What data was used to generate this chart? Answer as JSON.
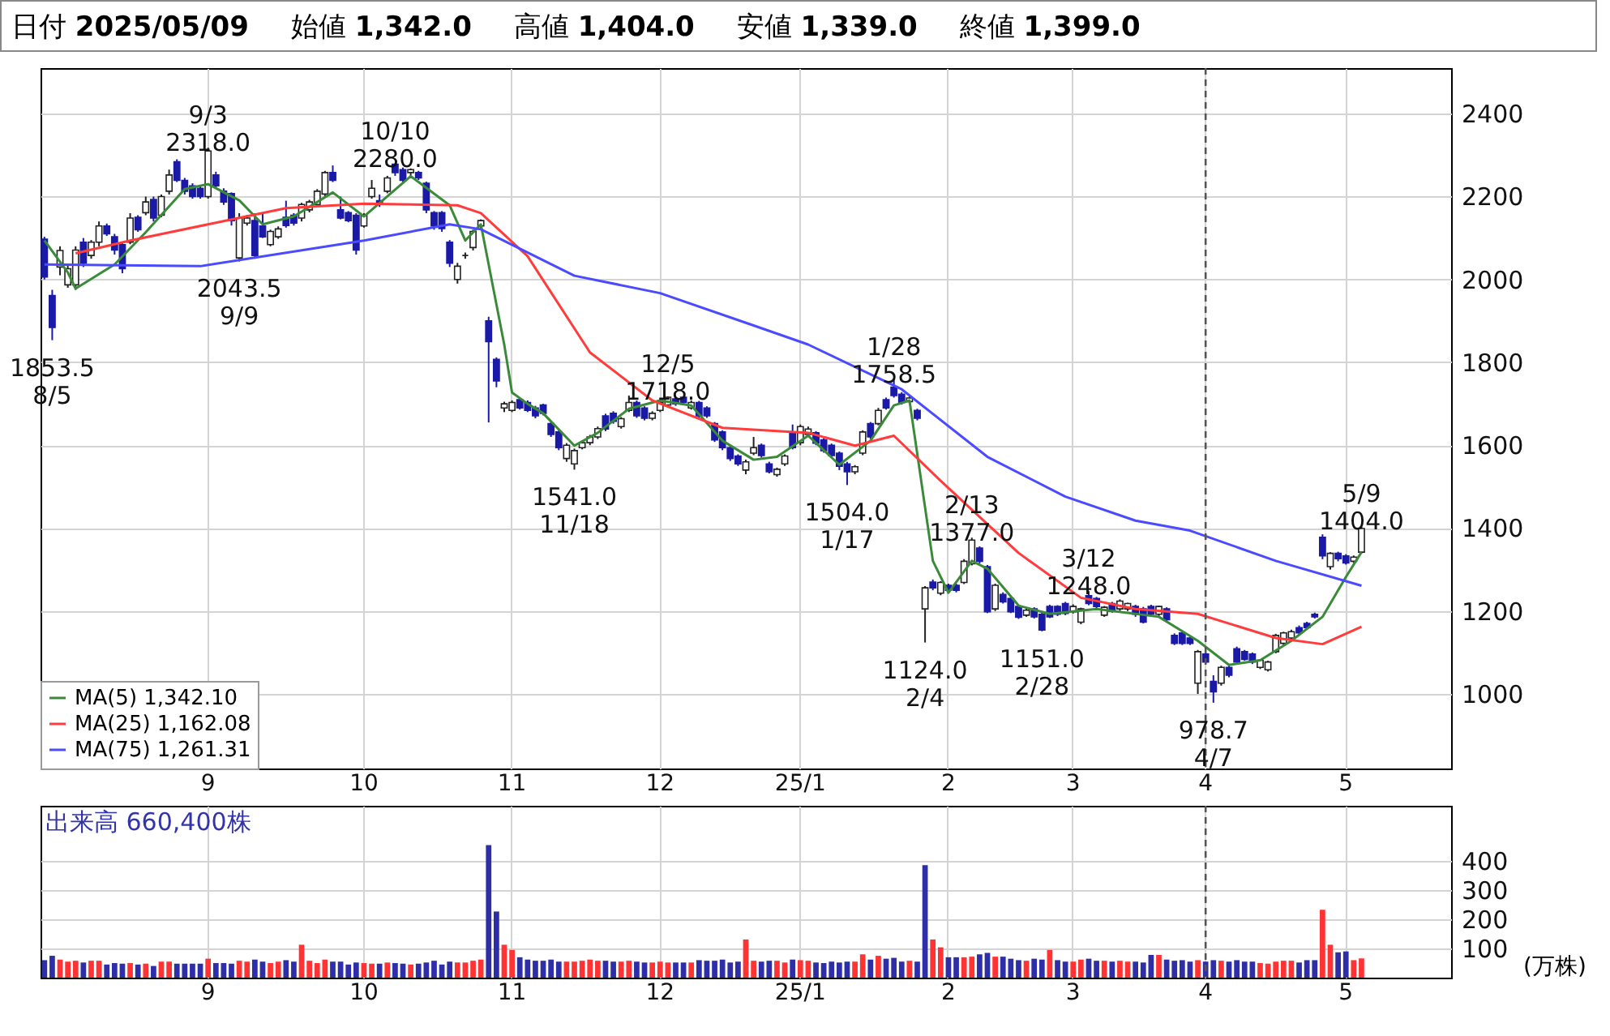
{
  "chart_data": [
    {
      "type": "candlestick",
      "annotations": [
        "日付 2025/05/09",
        "始値 1,342.0",
        "高値 1,404.0",
        "安値 1,339.0",
        "終値 1,399.0",
        {
          "text": "1853.5\n8/5",
          "y": 1853.5
        },
        {
          "text": "9/3\n2318.0",
          "y": 2318.0
        },
        {
          "text": "2043.5\n9/9",
          "y": 2043.5
        },
        {
          "text": "10/10\n2280.0",
          "y": 2280.0
        },
        {
          "text": "1541.0\n11/18",
          "y": 1541.0
        },
        {
          "text": "12/5\n1718.0",
          "y": 1718.0
        },
        {
          "text": "1504.0\n1/17",
          "y": 1504.0
        },
        {
          "text": "1/28\n1758.5",
          "y": 1758.5
        },
        {
          "text": "1124.0\n2/4",
          "y": 1124.0
        },
        {
          "text": "2/13\n1377.0",
          "y": 1377.0
        },
        {
          "text": "1151.0\n2/28",
          "y": 1151.0
        },
        {
          "text": "3/12\n1248.0",
          "y": 1248.0
        },
        {
          "text": "978.7\n4/7",
          "y": 978.7
        },
        {
          "text": "5/9\n1404.0",
          "y": 1404.0
        }
      ],
      "categories": [
        null,
        null,
        null,
        null,
        null,
        null,
        null,
        null,
        null,
        null,
        null,
        null,
        null,
        null,
        null,
        null,
        null,
        null,
        null,
        null,
        null,
        "9",
        null,
        null,
        null,
        null,
        null,
        null,
        null,
        null,
        null,
        null,
        null,
        null,
        null,
        null,
        null,
        null,
        null,
        null,
        null,
        "10",
        null,
        null,
        null,
        null,
        null,
        null,
        null,
        null,
        null,
        null,
        null,
        null,
        null,
        null,
        null,
        null,
        null,
        null,
        "11",
        null,
        null,
        null,
        null,
        null,
        null,
        null,
        null,
        null,
        null,
        null,
        null,
        null,
        null,
        null,
        null,
        null,
        null,
        "12",
        null,
        null,
        null,
        null,
        null,
        null,
        null,
        null,
        null,
        null,
        null,
        null,
        null,
        null,
        null,
        null,
        null,
        "25/1",
        null,
        null,
        null,
        null,
        null,
        null,
        null,
        null,
        null,
        null,
        null,
        null,
        null,
        null,
        null,
        null,
        null,
        null,
        "2",
        null,
        null,
        null,
        null,
        null,
        null,
        null,
        null,
        null,
        null,
        null,
        null,
        null,
        null,
        null,
        "3",
        null,
        null,
        null,
        null,
        null,
        null,
        null,
        null,
        null,
        null,
        null,
        null,
        null,
        null,
        null,
        null,
        "4",
        null,
        null,
        null,
        null,
        null,
        null,
        null,
        null,
        null,
        null,
        null,
        null,
        null,
        null,
        null,
        null,
        null,
        "5",
        null,
        null,
        null,
        null,
        null,
        null,
        null,
        null,
        null,
        null,
        null,
        null,
        null
      ],
      "ohlc": [
        [
          2097,
          2103,
          2000,
          2006
        ],
        [
          1961,
          1975,
          1853.5,
          1884
        ],
        [
          2030,
          2080,
          2010,
          2070
        ],
        [
          1987,
          2035,
          1980,
          2026
        ],
        [
          1987,
          2080,
          1975,
          2071
        ],
        [
          2090,
          2100,
          2030,
          2039
        ],
        [
          2058,
          2095,
          2050,
          2090
        ],
        [
          2090,
          2140,
          2080,
          2129
        ],
        [
          2129,
          2135,
          2105,
          2110
        ],
        [
          2103,
          2110,
          2060,
          2071
        ],
        [
          2084,
          2090,
          2015,
          2026
        ],
        [
          2090,
          2160,
          2085,
          2148
        ],
        [
          2150,
          2155,
          2115,
          2120
        ],
        [
          2161,
          2200,
          2155,
          2187
        ],
        [
          2193,
          2200,
          2140,
          2148
        ],
        [
          2155,
          2205,
          2150,
          2200
        ],
        [
          2213,
          2265,
          2205,
          2252
        ],
        [
          2284,
          2290,
          2235,
          2239
        ],
        [
          2239,
          2245,
          2205,
          2213
        ],
        [
          2226,
          2232,
          2195,
          2200
        ],
        [
          2220,
          2225,
          2195,
          2200
        ],
        [
          2200,
          2318,
          2195,
          2310
        ],
        [
          2252,
          2260,
          2220,
          2226
        ],
        [
          2213,
          2220,
          2180,
          2187
        ],
        [
          2207,
          2210,
          2130,
          2142
        ],
        [
          2052,
          2160,
          2043.5,
          2148
        ],
        [
          2136,
          2155,
          2130,
          2148
        ],
        [
          2142,
          2160,
          2050,
          2058
        ],
        [
          2129,
          2160,
          2100,
          2103
        ],
        [
          2084,
          2120,
          2080,
          2116
        ],
        [
          2103,
          2128,
          2098,
          2122
        ],
        [
          2150,
          2190,
          2125,
          2130
        ],
        [
          2155,
          2160,
          2130,
          2136
        ],
        [
          2148,
          2185,
          2140,
          2181
        ],
        [
          2168,
          2192,
          2162,
          2187
        ],
        [
          2181,
          2218,
          2175,
          2213
        ],
        [
          2206,
          2262,
          2200,
          2258
        ],
        [
          2258,
          2275,
          2235,
          2239
        ],
        [
          2168,
          2200,
          2145,
          2148
        ],
        [
          2161,
          2165,
          2138,
          2142
        ],
        [
          2155,
          2160,
          2060,
          2071
        ],
        [
          2129,
          2160,
          2125,
          2155
        ],
        [
          2200,
          2240,
          2195,
          2220
        ],
        [
          2190,
          2205,
          2175,
          2185
        ],
        [
          2213,
          2250,
          2208,
          2245
        ],
        [
          2278,
          2280,
          2250,
          2258
        ],
        [
          2265,
          2270,
          2235,
          2239
        ],
        [
          2258,
          2268,
          2250,
          2265
        ],
        [
          2258,
          2262,
          2240,
          2245
        ],
        [
          2232,
          2236,
          2160,
          2168
        ],
        [
          2161,
          2165,
          2120,
          2129
        ],
        [
          2161,
          2165,
          2115,
          2123
        ],
        [
          2090,
          2095,
          2030,
          2039
        ],
        [
          2000,
          2040,
          1990,
          2032
        ],
        [
          2058,
          2065,
          2050,
          2058
        ],
        [
          2077,
          2120,
          2070,
          2116
        ],
        [
          2129,
          2145,
          2120,
          2142
        ],
        [
          1900,
          1910,
          1655,
          1850
        ],
        [
          1807,
          1812,
          1740,
          1755
        ],
        [
          1690,
          1705,
          1680,
          1700
        ],
        [
          1684,
          1708,
          1680,
          1703
        ],
        [
          1710,
          1714,
          1686,
          1690
        ],
        [
          1703,
          1708,
          1680,
          1684
        ],
        [
          1690,
          1695,
          1665,
          1671
        ],
        [
          1697,
          1700,
          1672,
          1677
        ],
        [
          1652,
          1656,
          1620,
          1626
        ],
        [
          1632,
          1636,
          1588,
          1594
        ],
        [
          1568,
          1605,
          1560,
          1600
        ],
        [
          1555,
          1592,
          1541,
          1587
        ],
        [
          1594,
          1612,
          1590,
          1606
        ],
        [
          1606,
          1625,
          1600,
          1620
        ],
        [
          1620,
          1645,
          1615,
          1640
        ],
        [
          1671,
          1676,
          1634,
          1639
        ],
        [
          1677,
          1682,
          1652,
          1658
        ],
        [
          1645,
          1668,
          1640,
          1664
        ],
        [
          1684,
          1720,
          1680,
          1703
        ],
        [
          1703,
          1708,
          1666,
          1671
        ],
        [
          1690,
          1694,
          1660,
          1665
        ],
        [
          1665,
          1682,
          1660,
          1677
        ],
        [
          1684,
          1707,
          1680,
          1703
        ],
        [
          1697,
          1718,
          1692,
          1716
        ],
        [
          1712,
          1715,
          1695,
          1700
        ],
        [
          1716,
          1717,
          1698,
          1703
        ],
        [
          1690,
          1708,
          1686,
          1703
        ],
        [
          1703,
          1707,
          1666,
          1671
        ],
        [
          1690,
          1694,
          1666,
          1671
        ],
        [
          1652,
          1656,
          1608,
          1613
        ],
        [
          1632,
          1636,
          1588,
          1594
        ],
        [
          1594,
          1598,
          1562,
          1568
        ],
        [
          1574,
          1578,
          1550,
          1555
        ],
        [
          1540,
          1565,
          1530,
          1560
        ],
        [
          1581,
          1620,
          1576,
          1594
        ],
        [
          1600,
          1604,
          1570,
          1575
        ],
        [
          1555,
          1560,
          1532,
          1536
        ],
        [
          1529,
          1546,
          1524,
          1542
        ],
        [
          1555,
          1578,
          1550,
          1574
        ],
        [
          1632,
          1650,
          1590,
          1594
        ],
        [
          1606,
          1650,
          1600,
          1645
        ],
        [
          1626,
          1645,
          1620,
          1639
        ],
        [
          1630,
          1634,
          1600,
          1605
        ],
        [
          1613,
          1617,
          1582,
          1587
        ],
        [
          1600,
          1604,
          1570,
          1575
        ],
        [
          1581,
          1585,
          1540,
          1549
        ],
        [
          1555,
          1560,
          1504,
          1536
        ],
        [
          1536,
          1552,
          1530,
          1548
        ],
        [
          1581,
          1636,
          1576,
          1632
        ],
        [
          1652,
          1656,
          1615,
          1620
        ],
        [
          1652,
          1690,
          1648,
          1684
        ],
        [
          1710,
          1715,
          1686,
          1690
        ],
        [
          1740,
          1758.5,
          1715,
          1720
        ],
        [
          1723,
          1728,
          1698,
          1703
        ],
        [
          1705,
          1718,
          1700,
          1714
        ],
        [
          1684,
          1688,
          1660,
          1665
        ],
        [
          1205,
          1260,
          1124,
          1256
        ],
        [
          1270,
          1276,
          1250,
          1256
        ],
        [
          1243,
          1272,
          1238,
          1269
        ],
        [
          1262,
          1266,
          1246,
          1250
        ],
        [
          1262,
          1266,
          1245,
          1250
        ],
        [
          1269,
          1325,
          1265,
          1320
        ],
        [
          1314,
          1377,
          1310,
          1371
        ],
        [
          1352,
          1356,
          1315,
          1320
        ],
        [
          1307,
          1311,
          1195,
          1198
        ],
        [
          1205,
          1266,
          1200,
          1262
        ],
        [
          1240,
          1245,
          1218,
          1222
        ],
        [
          1230,
          1234,
          1195,
          1198
        ],
        [
          1211,
          1215,
          1181,
          1185
        ],
        [
          1190,
          1206,
          1186,
          1202
        ],
        [
          1205,
          1209,
          1182,
          1186
        ],
        [
          1192,
          1196,
          1151,
          1154
        ],
        [
          1211,
          1215,
          1183,
          1186
        ],
        [
          1211,
          1214,
          1188,
          1192
        ],
        [
          1218,
          1222,
          1190,
          1194
        ],
        [
          1198,
          1216,
          1194,
          1211
        ],
        [
          1173,
          1208,
          1168,
          1205
        ],
        [
          1237,
          1248,
          1214,
          1218
        ],
        [
          1230,
          1234,
          1207,
          1211
        ],
        [
          1190,
          1212,
          1186,
          1209
        ],
        [
          1218,
          1222,
          1196,
          1199
        ],
        [
          1205,
          1228,
          1200,
          1224
        ],
        [
          1205,
          1220,
          1200,
          1218
        ],
        [
          1211,
          1215,
          1186,
          1192
        ],
        [
          1205,
          1210,
          1170,
          1173
        ],
        [
          1211,
          1215,
          1188,
          1192
        ],
        [
          1192,
          1213,
          1188,
          1211
        ],
        [
          1205,
          1209,
          1174,
          1179
        ],
        [
          1141,
          1146,
          1118,
          1122
        ],
        [
          1147,
          1152,
          1118,
          1122
        ],
        [
          1135,
          1140,
          1118,
          1122
        ],
        [
          1026,
          1106,
          1000,
          1102
        ],
        [
          1096,
          1100,
          1072,
          1077
        ],
        [
          1030,
          1045,
          978.7,
          1005
        ],
        [
          1026,
          1068,
          1020,
          1064
        ],
        [
          1064,
          1068,
          1040,
          1045
        ],
        [
          1109,
          1114,
          1072,
          1077
        ],
        [
          1102,
          1106,
          1080,
          1083
        ],
        [
          1096,
          1100,
          1072,
          1077
        ],
        [
          1064,
          1084,
          1060,
          1081
        ],
        [
          1058,
          1080,
          1054,
          1077
        ],
        [
          1102,
          1145,
          1098,
          1141
        ],
        [
          1122,
          1150,
          1118,
          1147
        ],
        [
          1135,
          1155,
          1130,
          1150
        ],
        [
          1160,
          1165,
          1143,
          1147
        ],
        [
          1170,
          1174,
          1156,
          1160
        ],
        [
          1192,
          1196,
          1182,
          1186
        ],
        [
          1378,
          1385,
          1325,
          1333
        ],
        [
          1307,
          1342,
          1300,
          1339
        ],
        [
          1339,
          1343,
          1320,
          1326
        ],
        [
          1333,
          1337,
          1312,
          1316
        ],
        [
          1320,
          1334,
          1316,
          1330
        ],
        [
          1342,
          1404,
          1339,
          1399
        ],
        null,
        null,
        null,
        null,
        null,
        null,
        null,
        null,
        null,
        null,
        null
      ],
      "series": [
        {
          "name": "MA(5) 1,342.10",
          "color": "#3a8a3a",
          "type": "line",
          "values": [
            2094,
            null,
            null,
            2017,
            1978,
            null,
            null,
            null,
            null,
            2036,
            null,
            null,
            null,
            2114,
            null,
            null,
            null,
            null,
            2218,
            null,
            null,
            2230,
            null,
            null,
            null,
            2191,
            null,
            null,
            2133,
            null,
            null,
            null,
            2152,
            null,
            null,
            null,
            null,
            2210,
            null,
            null,
            null,
            2152,
            null,
            null,
            null,
            null,
            null,
            2249,
            null,
            null,
            null,
            null,
            2179,
            null,
            2094,
            null,
            2133,
            null,
            null,
            1843,
            1727,
            null,
            1700,
            null,
            1677,
            null,
            null,
            null,
            1599,
            null,
            null,
            1630,
            null,
            null,
            null,
            1688,
            null,
            null,
            null,
            1708,
            null,
            null,
            null,
            1696,
            null,
            null,
            null,
            1611,
            null,
            null,
            null,
            1565,
            null,
            null,
            1572,
            null,
            null,
            null,
            1623,
            null,
            null,
            null,
            1553,
            null,
            null,
            null,
            1611,
            null,
            null,
            1696,
            null,
            1708,
            null,
            null,
            1321,
            null,
            1244,
            null,
            null,
            1321,
            null,
            1302,
            null,
            null,
            null,
            1213,
            null,
            null,
            null,
            1193,
            null,
            null,
            null,
            null,
            null,
            1205,
            null,
            null,
            null,
            null,
            null,
            null,
            null,
            1186,
            null,
            null,
            null,
            null,
            1128,
            null,
            null,
            null,
            1070,
            null,
            null,
            null,
            1081,
            null,
            null,
            null,
            1128,
            null,
            null,
            null,
            1186,
            null,
            null,
            1282,
            null,
            1342,
            null,
            null,
            null,
            null,
            null,
            null,
            null,
            null,
            null,
            null,
            null
          ]
        },
        {
          "name": "MA(25) 1,162.08",
          "color": "#ff3b3b",
          "type": "line",
          "values": [
            null,
            null,
            null,
            null,
            2063,
            null,
            null,
            null,
            null,
            null,
            null,
            2094,
            null,
            null,
            null,
            null,
            null,
            null,
            null,
            null,
            null,
            2133,
            null,
            null,
            null,
            null,
            null,
            null,
            null,
            null,
            null,
            2172,
            null,
            null,
            null,
            null,
            null,
            null,
            null,
            null,
            null,
            2183,
            null,
            null,
            null,
            null,
            null,
            null,
            null,
            null,
            null,
            null,
            null,
            2179,
            null,
            null,
            2160,
            null,
            null,
            null,
            null,
            null,
            2056,
            null,
            null,
            null,
            null,
            null,
            null,
            null,
            1824,
            null,
            null,
            null,
            null,
            null,
            null,
            null,
            1708,
            null,
            null,
            null,
            null,
            null,
            null,
            null,
            null,
            1642,
            null,
            null,
            null,
            null,
            null,
            null,
            null,
            null,
            null,
            null,
            1630,
            null,
            null,
            null,
            null,
            null,
            1599,
            null,
            null,
            null,
            null,
            1623,
            null,
            null,
            null,
            null,
            null,
            1514,
            null,
            null,
            null,
            null,
            null,
            null,
            null,
            null,
            null,
            1340,
            null,
            null,
            null,
            null,
            null,
            null,
            null,
            1232,
            null,
            null,
            null,
            null,
            null,
            null,
            1205,
            null,
            null,
            null,
            null,
            null,
            null,
            null,
            1193,
            null,
            null,
            null,
            null,
            null,
            null,
            null,
            null,
            null,
            1135,
            null,
            null,
            null,
            null,
            null,
            1120,
            null,
            null,
            null,
            null,
            1162,
            null,
            null,
            null,
            null,
            null,
            null,
            null,
            null,
            null,
            null,
            null
          ]
        },
        {
          "name": "MA(75) 1,261.31",
          "color": "#4a4aff",
          "type": "line",
          "values": [
            2036,
            null,
            null,
            null,
            null,
            null,
            null,
            null,
            null,
            null,
            null,
            null,
            null,
            null,
            null,
            null,
            null,
            null,
            null,
            null,
            2032,
            null,
            null,
            null,
            null,
            null,
            null,
            null,
            null,
            null,
            null,
            null,
            null,
            null,
            null,
            null,
            null,
            null,
            null,
            null,
            null,
            2094,
            null,
            null,
            null,
            null,
            null,
            null,
            null,
            null,
            null,
            null,
            2133,
            null,
            null,
            null,
            2121,
            null,
            null,
            null,
            null,
            null,
            null,
            null,
            null,
            null,
            null,
            null,
            2009,
            null,
            null,
            null,
            null,
            null,
            null,
            null,
            null,
            null,
            null,
            1967,
            null,
            null,
            null,
            null,
            null,
            null,
            null,
            null,
            null,
            null,
            null,
            1889,
            null,
            null,
            null,
            null,
            null,
            null,
            1843,
            null,
            null,
            null,
            null,
            null,
            null,
            null,
            null,
            null,
            null,
            null,
            1735,
            null,
            null,
            null,
            null,
            null,
            null,
            null,
            null,
            null,
            null,
            1572,
            null,
            null,
            null,
            null,
            null,
            null,
            null,
            null,
            null,
            1476,
            null,
            null,
            null,
            null,
            null,
            null,
            null,
            null,
            1418,
            null,
            null,
            null,
            null,
            null,
            null,
            1394,
            null,
            null,
            null,
            null,
            null,
            null,
            null,
            null,
            null,
            null,
            1321,
            null,
            null,
            null,
            null,
            null,
            null,
            null,
            null,
            null,
            null,
            1261,
            null,
            null,
            null,
            null,
            null,
            null,
            null,
            null,
            null,
            null,
            null
          ]
        }
      ],
      "ylim": [
        820,
        2510
      ],
      "yticks": [
        1000,
        1200,
        1400,
        1600,
        1800,
        2000,
        2200,
        2400
      ],
      "grid": true,
      "legend": "bottom left",
      "ref_lines": [
        {
          "axis": "x",
          "value": "4",
          "color": "#555555",
          "line_style": "dashed"
        }
      ]
    },
    {
      "type": "bar",
      "title": "出来高 660,400株",
      "ylabel": "(万株)",
      "categories": [
        null,
        null,
        null,
        null,
        null,
        null,
        null,
        null,
        null,
        null,
        null,
        null,
        null,
        null,
        null,
        null,
        null,
        null,
        null,
        null,
        null,
        "9",
        null,
        null,
        null,
        null,
        null,
        null,
        null,
        null,
        null,
        null,
        null,
        null,
        null,
        null,
        null,
        null,
        null,
        null,
        null,
        "10",
        null,
        null,
        null,
        null,
        null,
        null,
        null,
        null,
        null,
        null,
        null,
        null,
        null,
        null,
        null,
        null,
        null,
        null,
        "11",
        null,
        null,
        null,
        null,
        null,
        null,
        null,
        null,
        null,
        null,
        null,
        null,
        null,
        null,
        null,
        null,
        null,
        null,
        "12",
        null,
        null,
        null,
        null,
        null,
        null,
        null,
        null,
        null,
        null,
        null,
        null,
        null,
        null,
        null,
        null,
        null,
        "25/1",
        null,
        null,
        null,
        null,
        null,
        null,
        null,
        null,
        null,
        null,
        null,
        null,
        null,
        null,
        null,
        null,
        null,
        null,
        "2",
        null,
        null,
        null,
        null,
        null,
        null,
        null,
        null,
        null,
        null,
        null,
        null,
        null,
        null,
        null,
        "3",
        null,
        null,
        null,
        null,
        null,
        null,
        null,
        null,
        null,
        null,
        null,
        null,
        null,
        null,
        null,
        null,
        "4",
        null,
        null,
        null,
        null,
        null,
        null,
        null,
        null,
        null,
        null,
        null,
        null,
        null,
        null,
        null,
        null,
        null,
        "5",
        null,
        null,
        null,
        null,
        null,
        null,
        null,
        null,
        null,
        null,
        null,
        null,
        null
      ],
      "values": [
        60,
        75,
        62,
        55,
        58,
        52,
        58,
        58,
        45,
        50,
        48,
        50,
        45,
        48,
        40,
        55,
        55,
        48,
        48,
        48,
        48,
        65,
        50,
        50,
        48,
        58,
        55,
        62,
        55,
        50,
        55,
        60,
        55,
        113,
        58,
        50,
        62,
        55,
        55,
        45,
        52,
        50,
        48,
        48,
        52,
        50,
        48,
        45,
        48,
        52,
        58,
        45,
        55,
        52,
        52,
        58,
        62,
        455,
        227,
        113,
        95,
        70,
        62,
        58,
        58,
        62,
        55,
        55,
        55,
        58,
        62,
        58,
        58,
        55,
        55,
        58,
        55,
        52,
        52,
        55,
        52,
        52,
        52,
        52,
        60,
        58,
        58,
        62,
        52,
        55,
        131,
        58,
        55,
        58,
        58,
        52,
        62,
        60,
        58,
        52,
        50,
        55,
        52,
        55,
        55,
        80,
        62,
        75,
        65,
        68,
        55,
        58,
        55,
        386,
        131,
        104,
        70,
        70,
        70,
        72,
        80,
        85,
        72,
        72,
        65,
        60,
        58,
        65,
        62,
        95,
        60,
        55,
        55,
        62,
        65,
        58,
        58,
        55,
        58,
        55,
        55,
        52,
        78,
        78,
        62,
        58,
        60,
        55,
        60,
        55,
        60,
        58,
        55,
        60,
        55,
        55,
        50,
        48,
        55,
        58,
        58,
        52,
        60,
        60,
        233,
        113,
        87,
        90,
        60,
        66,
        null,
        null,
        null,
        null,
        null,
        null,
        null,
        null,
        null,
        null,
        null
      ],
      "colors": [
        "#2e2ea8",
        "#2e2ea8",
        "#ff3333",
        "#ff3333",
        "#ff3333",
        "#2e2ea8",
        "#ff3333",
        "#ff3333",
        "#2e2ea8",
        "#2e2ea8",
        "#2e2ea8",
        "#ff3333",
        "#2e2ea8",
        "#ff3333",
        "#2e2ea8",
        "#ff3333",
        "#ff3333",
        "#2e2ea8",
        "#2e2ea8",
        "#2e2ea8",
        "#2e2ea8",
        "#ff3333",
        "#2e2ea8",
        "#2e2ea8",
        "#2e2ea8",
        "#ff3333",
        "#ff3333",
        "#2e2ea8",
        "#2e2ea8",
        "#ff3333",
        "#ff3333",
        "#2e2ea8",
        "#2e2ea8",
        "#ff3333",
        "#ff3333",
        "#ff3333",
        "#ff3333",
        "#2e2ea8",
        "#2e2ea8",
        "#2e2ea8",
        "#2e2ea8",
        "#ff3333",
        "#ff3333",
        "#2e2ea8",
        "#ff3333",
        "#2e2ea8",
        "#2e2ea8",
        "#ff3333",
        "#2e2ea8",
        "#2e2ea8",
        "#2e2ea8",
        "#2e2ea8",
        "#2e2ea8",
        "#ff3333",
        "#ff3333",
        "#ff3333",
        "#ff3333",
        "#2e2ea8",
        "#2e2ea8",
        "#ff3333",
        "#ff3333",
        "#2e2ea8",
        "#2e2ea8",
        "#2e2ea8",
        "#2e2ea8",
        "#2e2ea8",
        "#2e2ea8",
        "#ff3333",
        "#ff3333",
        "#ff3333",
        "#ff3333",
        "#ff3333",
        "#2e2ea8",
        "#2e2ea8",
        "#ff3333",
        "#ff3333",
        "#2e2ea8",
        "#2e2ea8",
        "#ff3333",
        "#ff3333",
        "#ff3333",
        "#2e2ea8",
        "#2e2ea8",
        "#ff3333",
        "#2e2ea8",
        "#2e2ea8",
        "#2e2ea8",
        "#2e2ea8",
        "#2e2ea8",
        "#2e2ea8",
        "#ff3333",
        "#ff3333",
        "#2e2ea8",
        "#2e2ea8",
        "#ff3333",
        "#ff3333",
        "#2e2ea8",
        "#ff3333",
        "#ff3333",
        "#2e2ea8",
        "#2e2ea8",
        "#2e2ea8",
        "#2e2ea8",
        "#2e2ea8",
        "#ff3333",
        "#ff3333",
        "#2e2ea8",
        "#ff3333",
        "#2e2ea8",
        "#2e2ea8",
        "#2e2ea8",
        "#ff3333",
        "#2e2ea8",
        "#2e2ea8",
        "#ff3333",
        "#ff3333",
        "#2e2ea8",
        "#2e2ea8",
        "#ff3333",
        "#ff3333",
        "#2e2ea8",
        "#2e2ea8",
        "#ff3333",
        "#2e2ea8",
        "#2e2ea8",
        "#2e2ea8",
        "#ff3333",
        "#2e2ea8",
        "#2e2ea8",
        "#ff3333",
        "#2e2ea8",
        "#2e2ea8",
        "#ff3333",
        "#ff3333",
        "#2e2ea8",
        "#2e2ea8",
        "#ff3333",
        "#2e2ea8",
        "#ff3333",
        "#ff3333",
        "#2e2ea8",
        "#2e2ea8",
        "#2e2ea8",
        "#ff3333",
        "#2e2ea8",
        "#2e2ea8",
        "#2e2ea8",
        "#2e2ea8",
        "#ff3333",
        "#2e2ea8",
        "#2e2ea8",
        "#ff3333",
        "#2e2ea8",
        "#2e2ea8",
        "#2e2ea8",
        "#2e2ea8",
        "#ff3333",
        "#ff3333",
        "#ff3333",
        "#ff3333",
        "#ff3333",
        "#2e2ea8",
        "#2e2ea8",
        "#2e2ea8",
        "#ff3333",
        "#ff3333",
        "#2e2ea8",
        "#2e2ea8",
        "#ff3333",
        "#ff3333",
        null,
        null,
        null,
        null,
        null,
        null,
        null,
        null,
        null,
        null,
        null
      ],
      "ylim": [
        0,
        590
      ],
      "yticks": [
        100,
        200,
        300,
        400
      ],
      "grid": true,
      "ref_lines": [
        {
          "axis": "x",
          "value": "4",
          "color": "#555555",
          "line_style": "dashed"
        }
      ]
    }
  ]
}
